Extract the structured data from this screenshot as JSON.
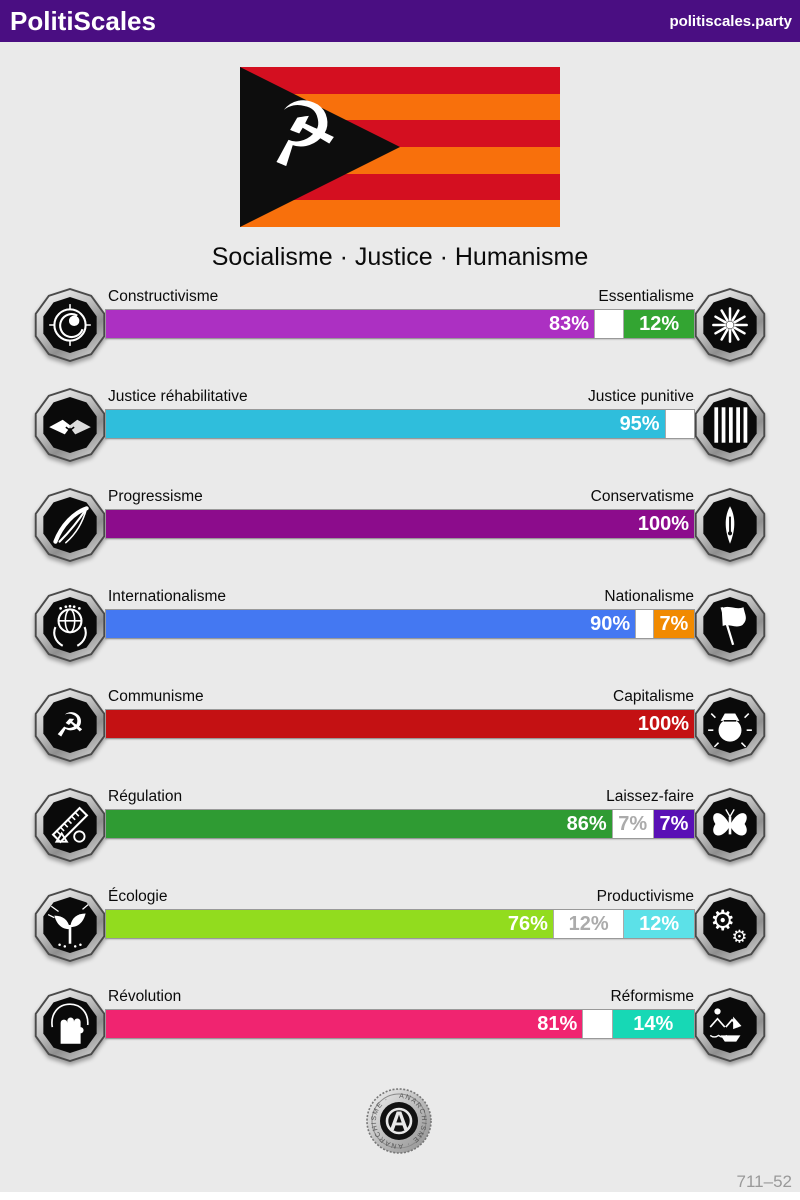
{
  "header": {
    "brand": "PolitiScales",
    "site": "politiscales.party",
    "bg_color": "#4A0E82"
  },
  "flag": {
    "emblem_icon": "hammer-sickle-icon",
    "stripes": [
      "#D40F20",
      "#F8700C",
      "#D40F20",
      "#F8700C",
      "#D40F20",
      "#F8700C"
    ]
  },
  "subtitle": "Socialisme · Justice · Humanisme",
  "axes": [
    {
      "left": {
        "label": "Constructivisme",
        "icon": "crystal-ball-icon",
        "color": "#AC30C2",
        "pct": 83,
        "pct_label": "83%"
      },
      "neutral": {
        "pct": 5,
        "pct_label": ""
      },
      "right": {
        "label": "Essentialisme",
        "icon": "chrysanthemum-icon",
        "color": "#33A532",
        "pct": 12,
        "pct_label": "12%"
      }
    },
    {
      "left": {
        "label": "Justice réhabilitative",
        "icon": "handshake-icon",
        "color": "#2FBEDC",
        "pct": 95,
        "pct_label": "95%"
      },
      "neutral": {
        "pct": 5,
        "pct_label": ""
      },
      "right": {
        "label": "Justice punitive",
        "icon": "prison-bars-icon",
        "color": "",
        "pct": 0,
        "pct_label": ""
      }
    },
    {
      "left": {
        "label": "Progressisme",
        "icon": "forward-sweep-icon",
        "color": "#8C0C8C",
        "pct": 100,
        "pct_label": "100%"
      },
      "neutral": {
        "pct": 0,
        "pct_label": ""
      },
      "right": {
        "label": "Conservatisme",
        "icon": "pen-nib-icon",
        "color": "",
        "pct": 0,
        "pct_label": ""
      }
    },
    {
      "left": {
        "label": "Internationalisme",
        "icon": "globe-laurel-icon",
        "color": "#4478F2",
        "pct": 90,
        "pct_label": "90%"
      },
      "neutral": {
        "pct": 3,
        "pct_label": ""
      },
      "right": {
        "label": "Nationalisme",
        "icon": "waving-flag-icon",
        "color": "#F18A00",
        "pct": 7,
        "pct_label": "7%"
      }
    },
    {
      "left": {
        "label": "Communisme",
        "icon": "hammer-sickle-icon",
        "color": "#C41113",
        "pct": 100,
        "pct_label": "100%"
      },
      "neutral": {
        "pct": 0,
        "pct_label": ""
      },
      "right": {
        "label": "Capitalisme",
        "icon": "money-bag-icon",
        "color": "",
        "pct": 0,
        "pct_label": ""
      }
    },
    {
      "left": {
        "label": "Régulation",
        "icon": "ruler-icon",
        "color": "#2F9B33",
        "pct": 86,
        "pct_label": "86%"
      },
      "neutral": {
        "pct": 7,
        "pct_label": "7%"
      },
      "right": {
        "label": "Laissez-faire",
        "icon": "butterfly-icon",
        "color": "#5910B5",
        "pct": 7,
        "pct_label": "7%"
      }
    },
    {
      "left": {
        "label": "Écologie",
        "icon": "sprout-icon",
        "color": "#92DC1E",
        "pct": 76,
        "pct_label": "76%"
      },
      "neutral": {
        "pct": 12,
        "pct_label": "12%"
      },
      "right": {
        "label": "Productivisme",
        "icon": "gears-icon",
        "color": "#5CE1E8",
        "pct": 12,
        "pct_label": "12%"
      }
    },
    {
      "left": {
        "label": "Révolution",
        "icon": "raised-fist-icon",
        "color": "#F02470",
        "pct": 81,
        "pct_label": "81%"
      },
      "neutral": {
        "pct": 5,
        "pct_label": ""
      },
      "right": {
        "label": "Réformisme",
        "icon": "sailboat-icon",
        "color": "#17D8B5",
        "pct": 14,
        "pct_label": "14%"
      }
    }
  ],
  "footer": {
    "seal_icon": "circle-a-icon",
    "seal_text": "ANARCHISME · ANARCHISME ·",
    "seal_letter": "A",
    "page_ref": "711–52"
  }
}
